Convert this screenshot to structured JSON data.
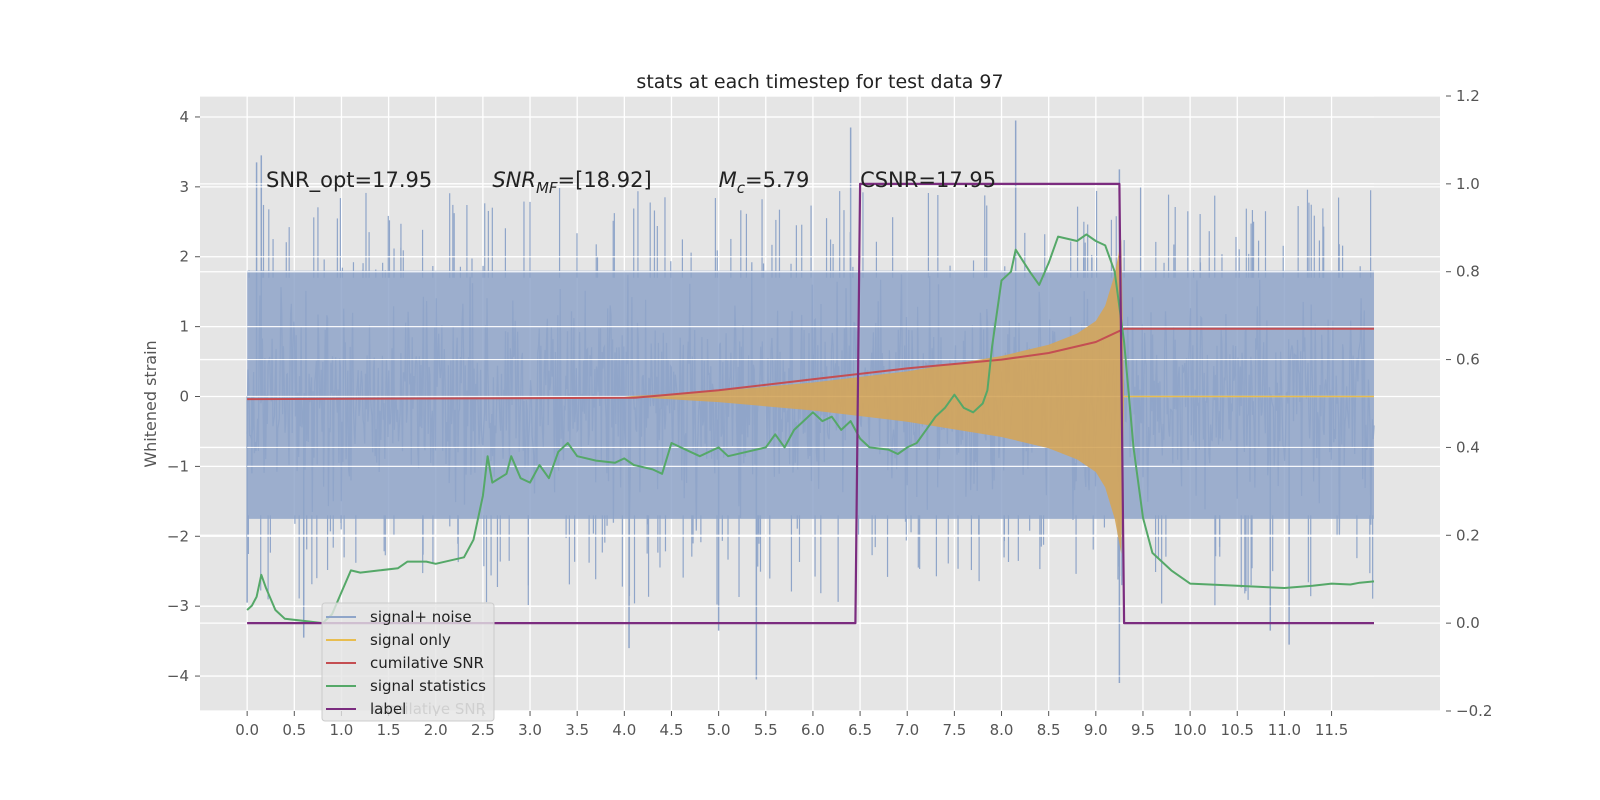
{
  "chart_data": {
    "type": "line",
    "title": "stats at each timestep for test data 97",
    "xlabel": "",
    "ylabel": "Whitened strain",
    "y2label": "",
    "xlim": [
      -0.5,
      12.65
    ],
    "ylim": [
      -4.5,
      4.3
    ],
    "y2lim": [
      -0.2,
      1.2
    ],
    "grid": true,
    "legend_position": "lower-left",
    "x_ticks": [
      0.0,
      0.5,
      1.0,
      1.5,
      2.0,
      2.5,
      3.0,
      3.5,
      4.0,
      4.5,
      5.0,
      5.5,
      6.0,
      6.5,
      7.0,
      7.5,
      8.0,
      8.5,
      9.0,
      9.5,
      10.0,
      10.5,
      11.0,
      11.5
    ],
    "x_tick_labels": [
      "0.0",
      "0.5",
      "1.0",
      "1.5",
      "2.0",
      "2.5",
      "3.0",
      "3.5",
      "4.0",
      "4.5",
      "5.0",
      "5.5",
      "6.0",
      "6.5",
      "7.0",
      "7.5",
      "8.0",
      "8.5",
      "9.0",
      "9.5",
      "10.0",
      "10.5",
      "11.0",
      "11.5"
    ],
    "y_ticks": [
      -4,
      -3,
      -2,
      -1,
      0,
      1,
      2,
      3,
      4
    ],
    "y_tick_labels": [
      "−4",
      "−3",
      "−2",
      "−1",
      "0",
      "1",
      "2",
      "3",
      "4"
    ],
    "y2_ticks": [
      -0.2,
      0.0,
      0.2,
      0.4,
      0.6,
      0.8,
      1.0,
      1.2
    ],
    "y2_tick_labels": [
      "−0.2",
      "0.0",
      "0.2",
      "0.4",
      "0.6",
      "0.8",
      "1.0",
      "1.2"
    ],
    "annotations": [
      {
        "text": "SNR_opt=17.95",
        "x": 0.2,
        "y": 3.1
      },
      {
        "text": "SNR",
        "sub": "MF",
        "rest": "=[18.92]",
        "x": 2.6,
        "y": 3.1,
        "italic": true
      },
      {
        "text": "M",
        "sub": "c",
        "rest": "=5.79",
        "x": 5.0,
        "y": 3.1,
        "italic": true
      },
      {
        "text": "CSNR=17.95",
        "x": 6.5,
        "y": 3.1
      }
    ],
    "series": [
      {
        "name": "signal+ noise",
        "color": "#8fa5c9",
        "axis": "left",
        "noise_amplitude": 1.25,
        "peaks": [
          {
            "x": 0.0,
            "y": -2.95
          },
          {
            "x": 0.05,
            "y": -1.1
          },
          {
            "x": 0.1,
            "y": 3.35
          },
          {
            "x": 0.15,
            "y": 3.45
          },
          {
            "x": 0.6,
            "y": -3.45
          },
          {
            "x": 4.05,
            "y": -3.6
          },
          {
            "x": 5.0,
            "y": -3.35
          },
          {
            "x": 5.4,
            "y": -4.05
          },
          {
            "x": 6.0,
            "y": 0.6
          },
          {
            "x": 6.4,
            "y": 3.85
          },
          {
            "x": 8.15,
            "y": 3.95
          },
          {
            "x": 9.25,
            "y": -4.1
          },
          {
            "x": 9.25,
            "y": 3.25
          },
          {
            "x": 10.85,
            "y": -3.35
          },
          {
            "x": 11.05,
            "y": -3.55
          }
        ]
      },
      {
        "name": "signal only",
        "color": "#e8bd4f",
        "fill_color": "#d4a55a",
        "axis": "left",
        "points": [
          {
            "x": 4.0,
            "y": 0.0
          },
          {
            "x": 5.0,
            "y": 0.08
          },
          {
            "x": 6.0,
            "y": 0.2
          },
          {
            "x": 7.0,
            "y": 0.36
          },
          {
            "x": 8.0,
            "y": 0.58
          },
          {
            "x": 8.5,
            "y": 0.74
          },
          {
            "x": 8.8,
            "y": 0.9
          },
          {
            "x": 9.0,
            "y": 1.08
          },
          {
            "x": 9.1,
            "y": 1.3
          },
          {
            "x": 9.2,
            "y": 1.75
          },
          {
            "x": 9.27,
            "y": 2.25
          },
          {
            "x": 9.3,
            "y": 0.0
          },
          {
            "x": 11.95,
            "y": 0.0
          }
        ]
      },
      {
        "name": "cumilative SNR",
        "color": "#c44e52",
        "axis": "right",
        "points": [
          {
            "x": 0.0,
            "y": 0.51
          },
          {
            "x": 4.1,
            "y": 0.513
          },
          {
            "x": 5.0,
            "y": 0.53
          },
          {
            "x": 6.0,
            "y": 0.555
          },
          {
            "x": 7.0,
            "y": 0.58
          },
          {
            "x": 8.0,
            "y": 0.6
          },
          {
            "x": 8.5,
            "y": 0.615
          },
          {
            "x": 9.0,
            "y": 0.64
          },
          {
            "x": 9.3,
            "y": 0.67
          },
          {
            "x": 11.95,
            "y": 0.67
          }
        ]
      },
      {
        "name": "signal statistics",
        "color": "#55a868",
        "axis": "right",
        "points": [
          {
            "x": 0.0,
            "y": 0.03
          },
          {
            "x": 0.05,
            "y": 0.04
          },
          {
            "x": 0.1,
            "y": 0.06
          },
          {
            "x": 0.15,
            "y": 0.11
          },
          {
            "x": 0.2,
            "y": 0.08
          },
          {
            "x": 0.3,
            "y": 0.03
          },
          {
            "x": 0.4,
            "y": 0.01
          },
          {
            "x": 0.6,
            "y": 0.005
          },
          {
            "x": 0.8,
            "y": 0.0
          },
          {
            "x": 0.9,
            "y": 0.02
          },
          {
            "x": 1.0,
            "y": 0.07
          },
          {
            "x": 1.1,
            "y": 0.12
          },
          {
            "x": 1.2,
            "y": 0.115
          },
          {
            "x": 1.4,
            "y": 0.12
          },
          {
            "x": 1.6,
            "y": 0.125
          },
          {
            "x": 1.7,
            "y": 0.14
          },
          {
            "x": 1.9,
            "y": 0.14
          },
          {
            "x": 2.0,
            "y": 0.135
          },
          {
            "x": 2.3,
            "y": 0.15
          },
          {
            "x": 2.4,
            "y": 0.19
          },
          {
            "x": 2.5,
            "y": 0.29
          },
          {
            "x": 2.55,
            "y": 0.38
          },
          {
            "x": 2.6,
            "y": 0.32
          },
          {
            "x": 2.75,
            "y": 0.34
          },
          {
            "x": 2.8,
            "y": 0.38
          },
          {
            "x": 2.9,
            "y": 0.33
          },
          {
            "x": 3.0,
            "y": 0.32
          },
          {
            "x": 3.1,
            "y": 0.36
          },
          {
            "x": 3.2,
            "y": 0.33
          },
          {
            "x": 3.3,
            "y": 0.39
          },
          {
            "x": 3.4,
            "y": 0.41
          },
          {
            "x": 3.5,
            "y": 0.38
          },
          {
            "x": 3.7,
            "y": 0.37
          },
          {
            "x": 3.9,
            "y": 0.365
          },
          {
            "x": 4.0,
            "y": 0.375
          },
          {
            "x": 4.1,
            "y": 0.36
          },
          {
            "x": 4.3,
            "y": 0.35
          },
          {
            "x": 4.4,
            "y": 0.34
          },
          {
            "x": 4.5,
            "y": 0.41
          },
          {
            "x": 4.7,
            "y": 0.39
          },
          {
            "x": 4.8,
            "y": 0.38
          },
          {
            "x": 5.0,
            "y": 0.4
          },
          {
            "x": 5.1,
            "y": 0.38
          },
          {
            "x": 5.3,
            "y": 0.39
          },
          {
            "x": 5.5,
            "y": 0.4
          },
          {
            "x": 5.6,
            "y": 0.43
          },
          {
            "x": 5.7,
            "y": 0.4
          },
          {
            "x": 5.8,
            "y": 0.44
          },
          {
            "x": 5.9,
            "y": 0.46
          },
          {
            "x": 6.0,
            "y": 0.48
          },
          {
            "x": 6.1,
            "y": 0.46
          },
          {
            "x": 6.2,
            "y": 0.47
          },
          {
            "x": 6.3,
            "y": 0.44
          },
          {
            "x": 6.4,
            "y": 0.46
          },
          {
            "x": 6.5,
            "y": 0.42
          },
          {
            "x": 6.6,
            "y": 0.4
          },
          {
            "x": 6.8,
            "y": 0.395
          },
          {
            "x": 6.9,
            "y": 0.385
          },
          {
            "x": 7.0,
            "y": 0.4
          },
          {
            "x": 7.1,
            "y": 0.41
          },
          {
            "x": 7.2,
            "y": 0.44
          },
          {
            "x": 7.3,
            "y": 0.47
          },
          {
            "x": 7.4,
            "y": 0.49
          },
          {
            "x": 7.5,
            "y": 0.52
          },
          {
            "x": 7.6,
            "y": 0.49
          },
          {
            "x": 7.7,
            "y": 0.48
          },
          {
            "x": 7.8,
            "y": 0.5
          },
          {
            "x": 7.85,
            "y": 0.53
          },
          {
            "x": 7.9,
            "y": 0.63
          },
          {
            "x": 8.0,
            "y": 0.78
          },
          {
            "x": 8.1,
            "y": 0.8
          },
          {
            "x": 8.15,
            "y": 0.85
          },
          {
            "x": 8.3,
            "y": 0.8
          },
          {
            "x": 8.4,
            "y": 0.77
          },
          {
            "x": 8.5,
            "y": 0.82
          },
          {
            "x": 8.6,
            "y": 0.88
          },
          {
            "x": 8.8,
            "y": 0.87
          },
          {
            "x": 8.9,
            "y": 0.885
          },
          {
            "x": 9.0,
            "y": 0.87
          },
          {
            "x": 9.1,
            "y": 0.86
          },
          {
            "x": 9.2,
            "y": 0.8
          },
          {
            "x": 9.3,
            "y": 0.64
          },
          {
            "x": 9.4,
            "y": 0.4
          },
          {
            "x": 9.5,
            "y": 0.24
          },
          {
            "x": 9.6,
            "y": 0.16
          },
          {
            "x": 9.8,
            "y": 0.12
          },
          {
            "x": 10.0,
            "y": 0.09
          },
          {
            "x": 10.5,
            "y": 0.085
          },
          {
            "x": 11.0,
            "y": 0.08
          },
          {
            "x": 11.3,
            "y": 0.085
          },
          {
            "x": 11.5,
            "y": 0.09
          },
          {
            "x": 11.7,
            "y": 0.088
          },
          {
            "x": 11.8,
            "y": 0.092
          },
          {
            "x": 11.95,
            "y": 0.095
          }
        ]
      },
      {
        "name": "label",
        "color": "#7b2c7f",
        "axis": "right",
        "points": [
          {
            "x": 0.0,
            "y": 0.0
          },
          {
            "x": 6.45,
            "y": 0.0
          },
          {
            "x": 6.5,
            "y": 1.0
          },
          {
            "x": 9.25,
            "y": 1.0
          },
          {
            "x": 9.3,
            "y": 0.0
          },
          {
            "x": 11.95,
            "y": 0.0
          }
        ]
      }
    ],
    "legend_ghost_text": "cumilative SNR"
  }
}
